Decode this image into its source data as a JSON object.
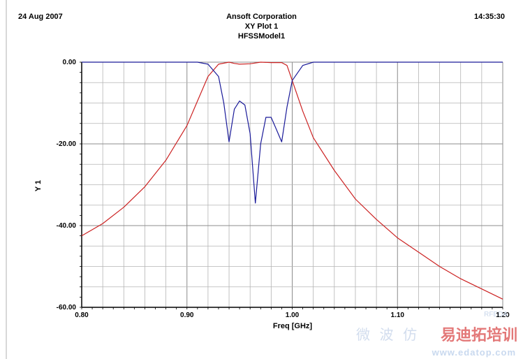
{
  "header": {
    "date": "24 Aug 2007",
    "company": "Ansoft Corporation",
    "plot_name": "XY Plot 1",
    "model": "HFSSModel1",
    "time": "14:35:30"
  },
  "watermark": {
    "cn_text": "微 波 仿",
    "brand": "易迪拓培训",
    "site": "www.edatop.com",
    "rf": "RFEDA"
  },
  "chart_data": {
    "type": "line",
    "title": "",
    "xlabel": "Freq [GHz]",
    "ylabel": "Y 1",
    "xlim": [
      0.8,
      1.2
    ],
    "ylim": [
      -60,
      0
    ],
    "xticks": [
      0.8,
      0.9,
      1.0,
      1.1,
      1.2
    ],
    "xtick_labels": [
      "0.80",
      "0.90",
      "1.00",
      "1.10",
      "1.20"
    ],
    "yticks": [
      0,
      -20,
      -40,
      -60
    ],
    "ytick_labels": [
      "0.00",
      "-20.00",
      "-40.00",
      "-60.00"
    ],
    "grid": true,
    "colors": {
      "grid": "#b4b4b4",
      "axis": "#000000",
      "s21": "#cc2222",
      "s11": "#1a1a99"
    },
    "series": [
      {
        "color": "#cc2222",
        "x": [
          0.8,
          0.82,
          0.84,
          0.86,
          0.88,
          0.9,
          0.91,
          0.92,
          0.93,
          0.94,
          0.945,
          0.95,
          0.96,
          0.97,
          0.98,
          0.99,
          0.995,
          1.0,
          1.01,
          1.02,
          1.04,
          1.06,
          1.08,
          1.1,
          1.12,
          1.14,
          1.16,
          1.18,
          1.2
        ],
        "y": [
          -42.5,
          -39.5,
          -35.5,
          -30.5,
          -24.0,
          -15.5,
          -9.5,
          -3.5,
          -0.5,
          0,
          -0.3,
          -0.5,
          -0.4,
          0,
          -0.1,
          -0.1,
          -0.8,
          -4.5,
          -12.0,
          -18.5,
          -26.5,
          -33.5,
          -38.5,
          -43.0,
          -46.5,
          -50.0,
          -53.0,
          -55.5,
          -58.0
        ]
      },
      {
        "color": "#1a1a99",
        "x": [
          0.8,
          0.9,
          0.91,
          0.92,
          0.93,
          0.935,
          0.94,
          0.945,
          0.95,
          0.955,
          0.96,
          0.965,
          0.97,
          0.975,
          0.98,
          0.985,
          0.99,
          0.995,
          1.0,
          1.01,
          1.02,
          1.2
        ],
        "y": [
          0,
          0,
          0,
          -0.5,
          -3.5,
          -10,
          -19.5,
          -11.5,
          -9.5,
          -10.5,
          -17.5,
          -34.5,
          -20,
          -13.5,
          -13.5,
          -16.5,
          -19.5,
          -11,
          -4.5,
          -0.8,
          0,
          0
        ]
      }
    ]
  }
}
